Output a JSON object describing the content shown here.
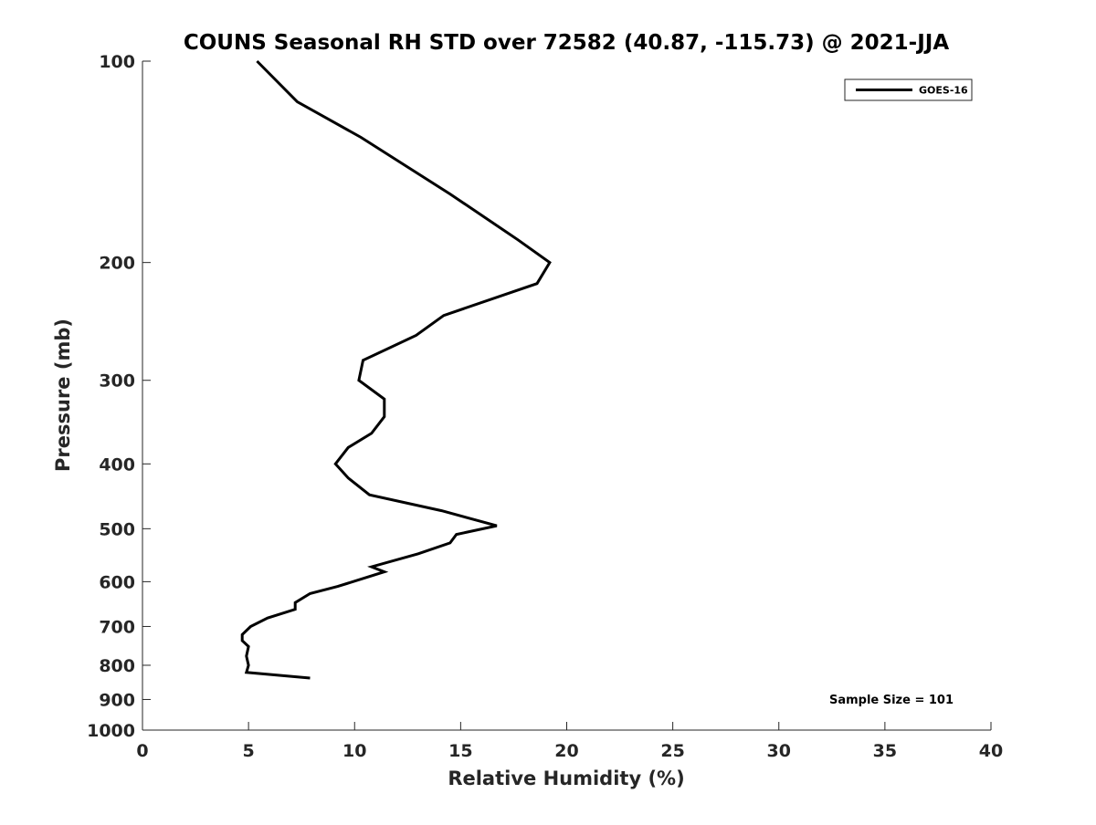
{
  "chart_data": {
    "type": "line",
    "title": "COUNS Seasonal RH STD over 72582 (40.87, -115.73) @ 2021-JJA",
    "xlabel": "Relative Humidity (%)",
    "ylabel": "Pressure (mb)",
    "xlim": [
      0,
      40
    ],
    "ylim": [
      1000,
      100
    ],
    "yscale": "log",
    "xticks": [
      0,
      5,
      10,
      15,
      20,
      25,
      30,
      35,
      40
    ],
    "yticks": [
      100,
      200,
      300,
      400,
      500,
      600,
      700,
      800,
      900,
      1000
    ],
    "grid": false,
    "legend": "top-right",
    "annotation": "Sample Size = 101",
    "series": [
      {
        "name": "GOES-16",
        "color": "#000000",
        "x": [
          5.4,
          7.3,
          10.3,
          14.5,
          17.7,
          19.2,
          18.6,
          14.2,
          12.9,
          10.4,
          10.2,
          11.4,
          11.4,
          10.8,
          9.7,
          9.1,
          9.7,
          10.7,
          14.1,
          16.7,
          14.8,
          14.5,
          13.0,
          10.8,
          11.4,
          9.2,
          7.9,
          7.2,
          7.2,
          5.9,
          5.1,
          4.7,
          4.7,
          5.0,
          4.9,
          5.0,
          4.9,
          7.9
        ],
        "y": [
          100,
          115,
          130,
          158,
          185,
          200,
          215,
          240,
          257,
          280,
          300,
          320,
          340,
          360,
          378,
          400,
          420,
          445,
          470,
          495,
          510,
          525,
          545,
          570,
          580,
          610,
          625,
          645,
          660,
          680,
          700,
          720,
          735,
          750,
          775,
          800,
          820,
          836
        ]
      }
    ]
  }
}
